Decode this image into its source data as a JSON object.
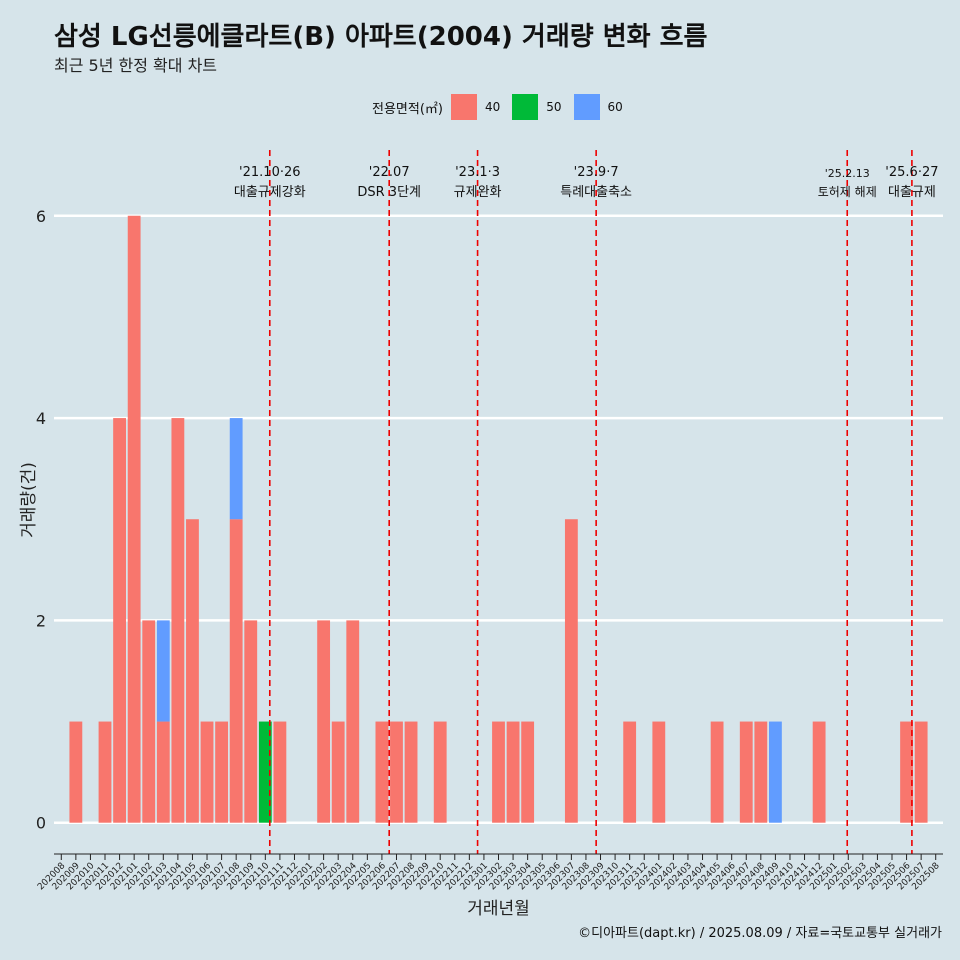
{
  "title": "삼성 LG선릉에클라트(B) 아파트(2004) 거래량 변화 흐름",
  "subtitle": "최근 5년 한정 확대 차트",
  "credit": "©디아파트(dapt.kr) / 2025.08.09 / 자료=국토교통부 실거래가",
  "legend": {
    "title": "전용면적(㎡)",
    "items": [
      {
        "label": "40",
        "color": "#F8766D"
      },
      {
        "label": "50",
        "color": "#00BA38"
      },
      {
        "label": "60",
        "color": "#619CFF"
      }
    ]
  },
  "chart_data": {
    "type": "bar",
    "xlabel": "거래년월",
    "ylabel": "거래량(건)",
    "ylim": [
      -0.25,
      6.65
    ],
    "yticks": [
      0,
      2,
      4,
      6
    ],
    "grid": true,
    "legend_position": "top",
    "categories": [
      "202008",
      "202009",
      "202010",
      "202011",
      "202012",
      "202101",
      "202102",
      "202103",
      "202104",
      "202105",
      "202106",
      "202107",
      "202108",
      "202109",
      "202110",
      "202111",
      "202112",
      "202201",
      "202202",
      "202203",
      "202204",
      "202205",
      "202206",
      "202207",
      "202208",
      "202209",
      "202210",
      "202211",
      "202212",
      "202301",
      "202302",
      "202303",
      "202304",
      "202305",
      "202306",
      "202307",
      "202308",
      "202309",
      "202310",
      "202311",
      "202312",
      "202401",
      "202402",
      "202403",
      "202404",
      "202405",
      "202406",
      "202407",
      "202408",
      "202409",
      "202410",
      "202411",
      "202412",
      "202501",
      "202502",
      "202503",
      "202504",
      "202505",
      "202506",
      "202507",
      "202508"
    ],
    "series": [
      {
        "name": "40",
        "color": "#F8766D",
        "values": [
          0,
          1,
          0,
          1,
          4,
          6,
          2,
          1,
          4,
          3,
          1,
          1,
          3,
          2,
          0,
          1,
          0,
          0,
          2,
          1,
          2,
          0,
          1,
          1,
          1,
          0,
          1,
          0,
          0,
          0,
          1,
          1,
          1,
          0,
          0,
          3,
          0,
          0,
          0,
          1,
          0,
          1,
          0,
          0,
          0,
          1,
          0,
          1,
          1,
          0,
          0,
          0,
          1,
          0,
          0,
          0,
          0,
          0,
          1,
          1,
          0
        ]
      },
      {
        "name": "50",
        "color": "#00BA38",
        "values": [
          0,
          0,
          0,
          0,
          0,
          0,
          0,
          0,
          0,
          0,
          0,
          0,
          0,
          0,
          1,
          0,
          0,
          0,
          0,
          0,
          0,
          0,
          0,
          0,
          0,
          0,
          0,
          0,
          0,
          0,
          0,
          0,
          0,
          0,
          0,
          0,
          0,
          0,
          0,
          0,
          0,
          0,
          0,
          0,
          0,
          0,
          0,
          0,
          0,
          0,
          0,
          0,
          0,
          0,
          0,
          0,
          0,
          0,
          0,
          0,
          0
        ]
      },
      {
        "name": "60",
        "color": "#619CFF",
        "values": [
          0,
          0,
          0,
          0,
          0,
          0,
          0,
          1,
          0,
          0,
          0,
          0,
          1,
          0,
          0,
          0,
          0,
          0,
          0,
          0,
          0,
          0,
          0,
          0,
          0,
          0,
          0,
          0,
          0,
          0,
          0,
          0,
          0,
          0,
          0,
          0,
          0,
          0,
          0,
          0,
          0,
          0,
          0,
          0,
          0,
          0,
          0,
          0,
          0,
          1,
          0,
          0,
          0,
          0,
          0,
          0,
          0,
          0,
          0,
          0,
          0
        ]
      }
    ],
    "events": [
      {
        "x": "2021-10-26",
        "date": "'21.10·26",
        "label": "대출규제강화"
      },
      {
        "x": "2022-07-01",
        "date": "'22.07",
        "label": "DSR 3단계"
      },
      {
        "x": "2023-01-03",
        "date": "'23.1·3",
        "label": "규제완화"
      },
      {
        "x": "2023-09-07",
        "date": "'23.9·7",
        "label": "특례대출축소"
      },
      {
        "x": "2025-02-13",
        "date": "'25.2.13",
        "label": "토허제 해제"
      },
      {
        "x": "2025-06-27",
        "date": "'25.6·27",
        "label": "대출규제"
      }
    ]
  }
}
